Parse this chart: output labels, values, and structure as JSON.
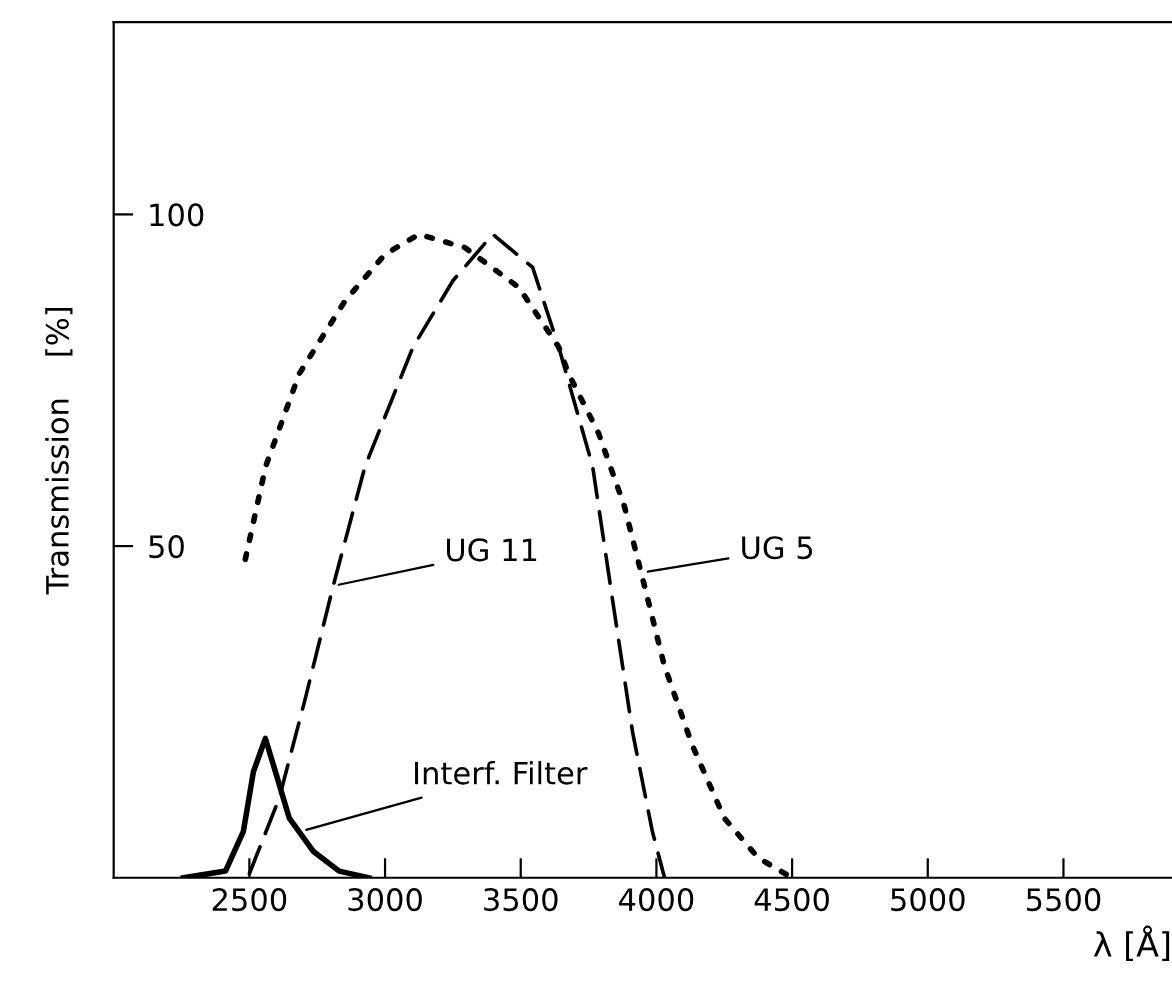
{
  "chart_data": {
    "type": "line",
    "xlabel": "λ [Å]",
    "ylabel": "Transmission    [%]",
    "xlim": [
      2000,
      5900
    ],
    "ylim": [
      0,
      129
    ],
    "xticks": [
      2500,
      3000,
      3500,
      4000,
      4500,
      5000,
      5500
    ],
    "yticks": [
      50,
      100
    ],
    "grid": false,
    "legend": false,
    "marker": "none",
    "series": [
      {
        "color": "#000000",
        "line_style": "dotted",
        "x": [
          2485,
          2560,
          2684,
          2853,
          3000,
          3125,
          3294,
          3493,
          3640,
          3676,
          3787,
          3882,
          3956,
          4029,
          4132,
          4250,
          4375,
          4500
        ],
        "values": [
          48,
          62,
          76,
          87,
          94,
          97,
          95,
          89,
          80,
          76,
          67,
          56,
          44,
          32,
          20,
          9,
          3,
          0
        ]
      },
      {
        "color": "#000000",
        "line_style": "dashed",
        "x": [
          2500,
          2610,
          2706,
          2809,
          2926,
          3103,
          3250,
          3397,
          3544,
          3640,
          3765,
          3838,
          3912,
          3985,
          4030
        ],
        "values": [
          0.6,
          12,
          27,
          44,
          62,
          80,
          90,
          97,
          92,
          80,
          62,
          42,
          22,
          7,
          0
        ]
      },
      {
        "color": "#000000",
        "line_style": "solid",
        "x": [
          2257,
          2412,
          2478,
          2515,
          2559,
          2596,
          2647,
          2735,
          2831,
          2941
        ],
        "values": [
          0,
          1,
          7,
          16,
          21,
          16,
          9,
          4,
          1,
          0
        ]
      }
    ],
    "annotations": [
      {
        "text": "UG 11",
        "x": 2809,
        "y": 44
      },
      {
        "text": "UG 5",
        "x": 3948,
        "y": 46
      },
      {
        "text": "Interf. Filter",
        "x": 2690,
        "y": 7
      }
    ]
  }
}
